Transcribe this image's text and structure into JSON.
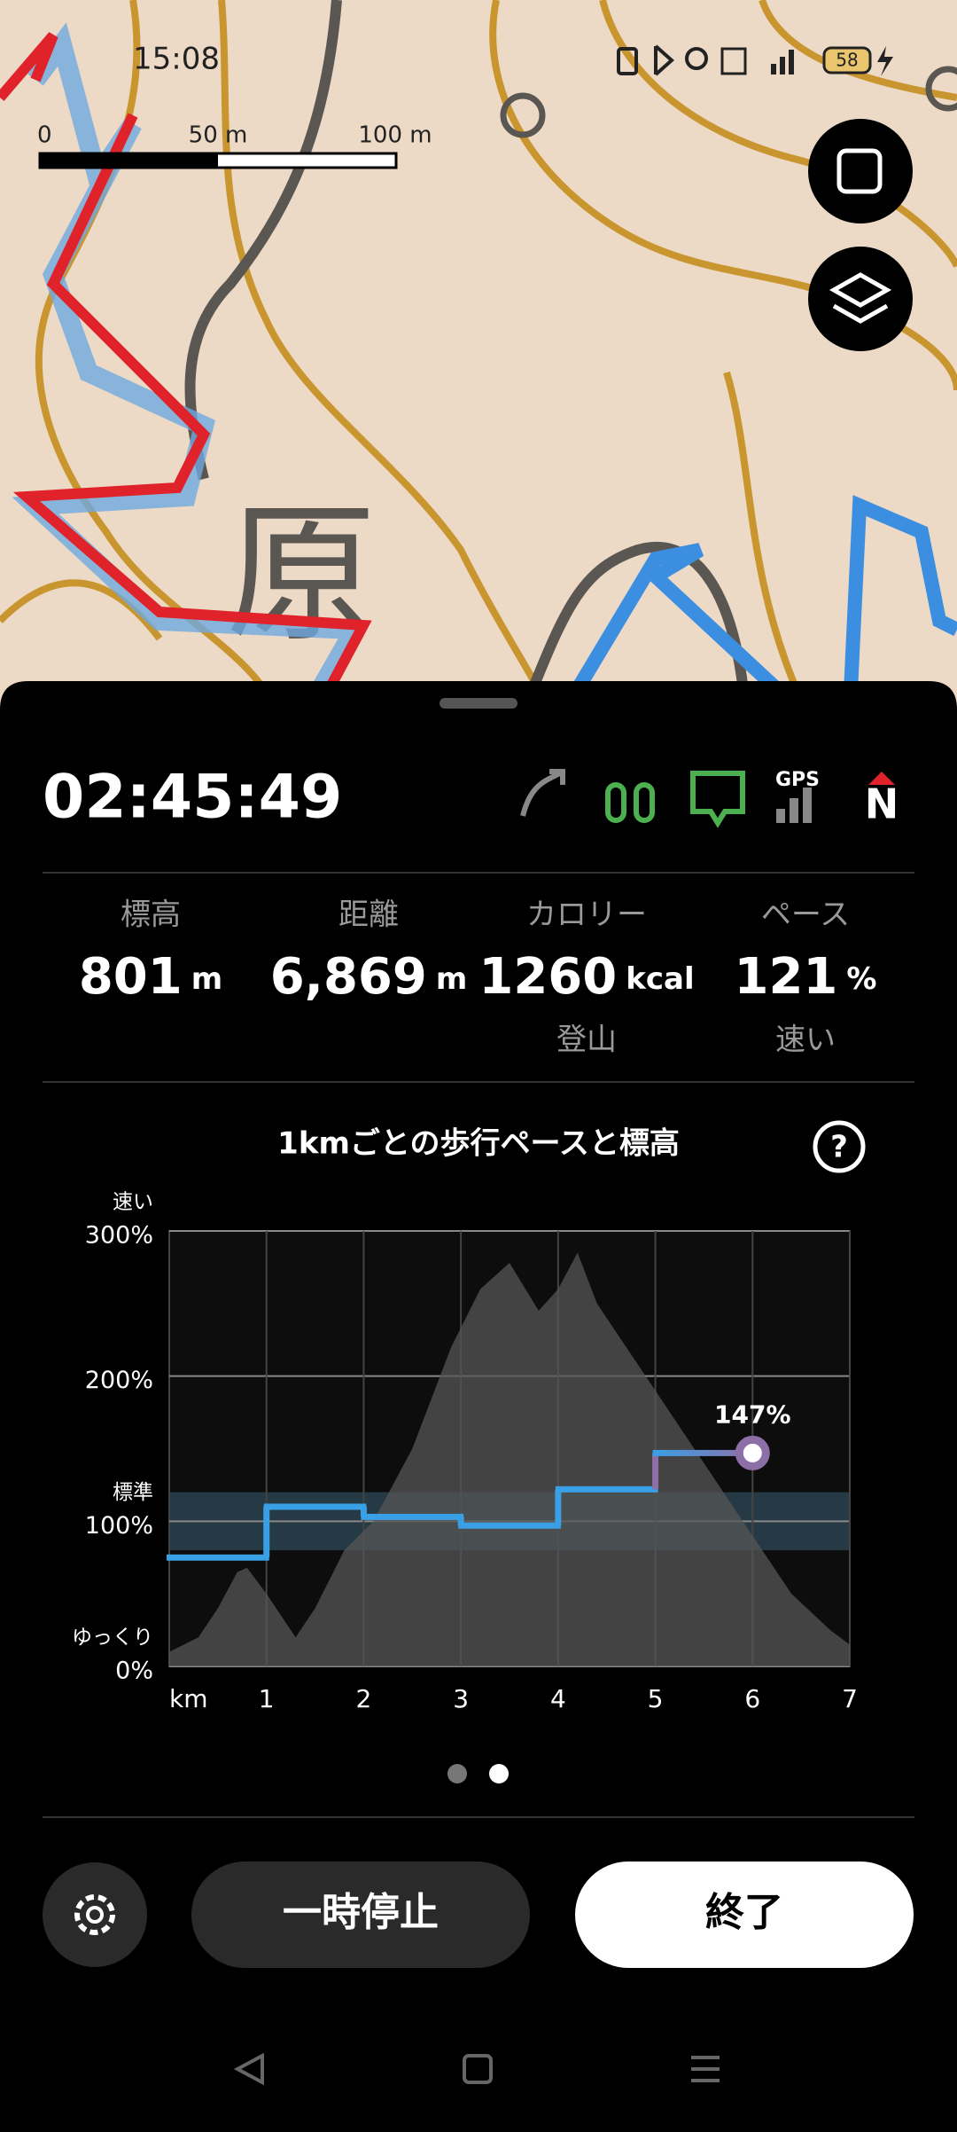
{
  "status": {
    "time": "15:08",
    "battery": "58"
  },
  "map": {
    "scale_labels": [
      "0",
      "50 m",
      "100 m"
    ],
    "place_label": "原"
  },
  "tracker": {
    "elapsed": "02:45:49",
    "gps_label": "GPS",
    "compass": "N"
  },
  "stats": [
    {
      "label": "標高",
      "value": "801",
      "unit": "m"
    },
    {
      "label": "距離",
      "value": "6,869",
      "unit": "m"
    },
    {
      "label": "カロリー",
      "value": "1260",
      "unit": "kcal",
      "sub": "登山"
    },
    {
      "label": "ペース",
      "value": "121",
      "unit": "%",
      "sub": "速い"
    }
  ],
  "chart_data": {
    "type": "step",
    "title": "1kmごとの歩行ペースと標高",
    "xlabel": "km",
    "xlim": [
      0,
      7
    ],
    "xticks": [
      1,
      2,
      3,
      4,
      5,
      6,
      7
    ],
    "ylim": [
      0,
      300
    ],
    "yticks": [
      {
        "value": 0,
        "label": "0%"
      },
      {
        "value": 100,
        "label": "100%"
      },
      {
        "value": 200,
        "label": "200%"
      },
      {
        "value": 300,
        "label": "300%"
      }
    ],
    "y_annotations": [
      {
        "value": 300,
        "label": "速い"
      },
      {
        "value": 100,
        "label": "標準"
      },
      {
        "value": 0,
        "label": "ゆっくり"
      }
    ],
    "band": [
      80,
      120
    ],
    "band_color": "#2c4654",
    "grid": true,
    "series": [
      {
        "color": "#3aa0e6",
        "end_color": "#8d6fa8",
        "x": [
          0,
          1,
          2,
          3,
          4,
          5,
          6
        ],
        "values": [
          75,
          110,
          103,
          97,
          122,
          147,
          147
        ],
        "value_labels": [
          null,
          null,
          null,
          null,
          null,
          null,
          "147%"
        ]
      },
      {
        "color": "#555555",
        "x": [
          0,
          0.3,
          0.5,
          0.7,
          0.8,
          1.0,
          1.3,
          1.5,
          1.8,
          2.1,
          2.5,
          2.9,
          3.2,
          3.5,
          3.8,
          4.0,
          4.2,
          4.4,
          4.8,
          5.2,
          5.6,
          6.0,
          6.4,
          6.8,
          7.0
        ],
        "values": [
          10,
          20,
          40,
          65,
          68,
          50,
          20,
          40,
          80,
          100,
          150,
          220,
          260,
          278,
          245,
          260,
          285,
          250,
          210,
          170,
          130,
          90,
          50,
          25,
          15
        ]
      }
    ]
  }
}
